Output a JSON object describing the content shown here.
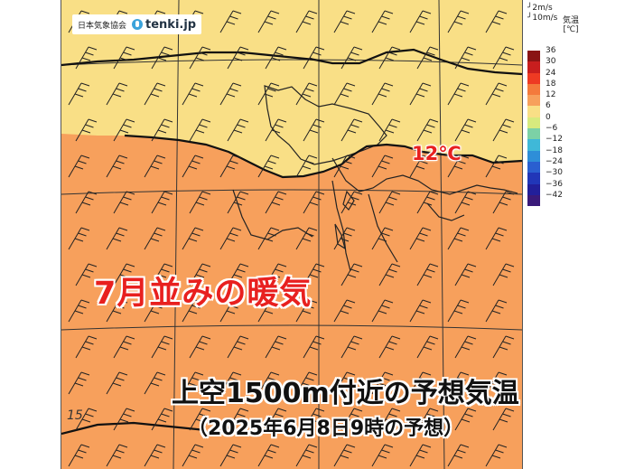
{
  "logo": {
    "jwa_text": "日本気象協会",
    "tenki_text": "tenki.jp"
  },
  "map": {
    "cold_region_color": "#f9df86",
    "warm_region_color": "#f7a05c",
    "isotherm_label": "12℃",
    "lower_contour_label": "15"
  },
  "annotations": {
    "warm_air_label": "7月並みの暖気",
    "title": "上空1500m付近の予想気温",
    "subtitle": "（2025年6月8日9時の予想）"
  },
  "legend": {
    "wind_small": "2m/s",
    "wind_large": "10m/s",
    "title": "気温",
    "unit": "[℃]",
    "ticks": [
      "36",
      "30",
      "24",
      "18",
      "12",
      "6",
      "0",
      "−6",
      "−12",
      "−18",
      "−24",
      "−30",
      "−36",
      "−42"
    ],
    "colors": [
      "#8a1414",
      "#c81e1e",
      "#ee3a23",
      "#f47a3c",
      "#f7a05c",
      "#f9df86",
      "#d7ea7e",
      "#7cd1a6",
      "#3fb8d8",
      "#2e8ed8",
      "#2a5fd0",
      "#2136b8",
      "#221f9a",
      "#3a1a7a"
    ]
  }
}
